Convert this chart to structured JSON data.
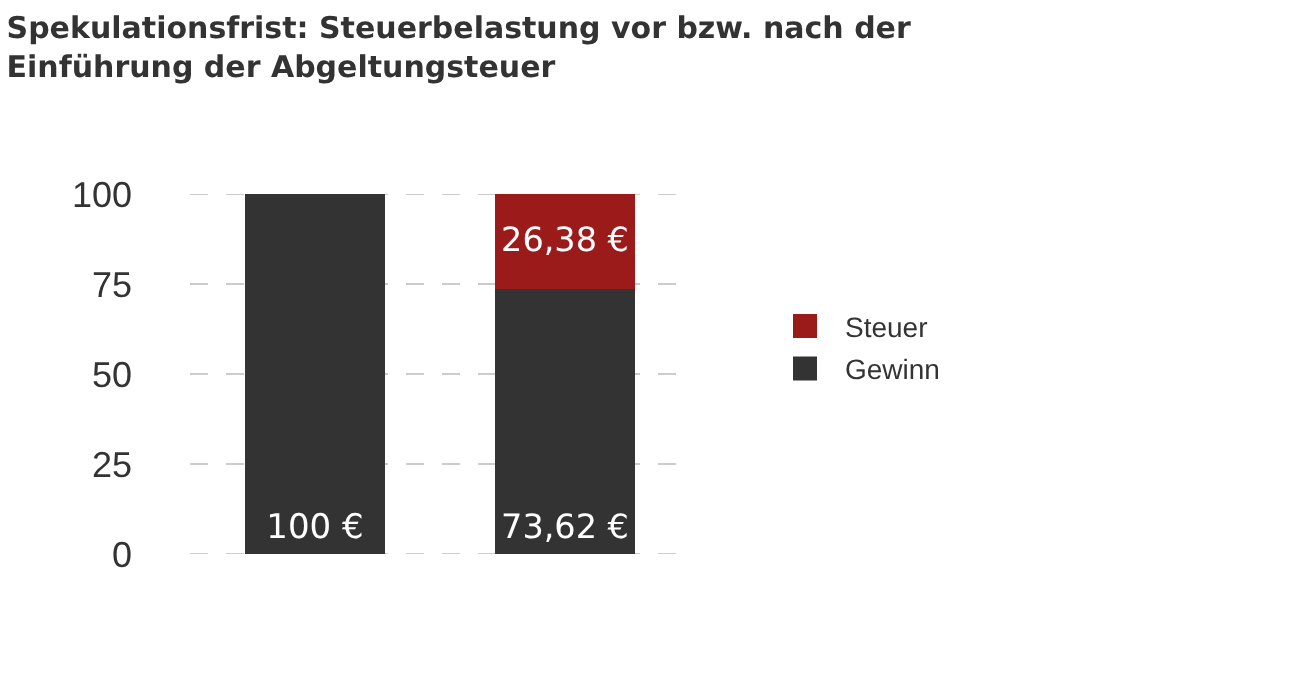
{
  "chart_data": {
    "type": "bar",
    "title": "Spekulationsfrist: Steuerbelastung vor bzw. nach der Einführung der Abgeltungsteuer",
    "categories": [
      null,
      null
    ],
    "stacked": true,
    "series": [
      {
        "name": "Gewinn",
        "color": "#333333",
        "values": [
          100,
          73.62
        ],
        "value_labels": [
          "100 €",
          "73,62 €"
        ]
      },
      {
        "name": "Steuer",
        "color": "#9b1b1b",
        "values": [
          null,
          26.38
        ],
        "value_labels": [
          null,
          "26,38 €"
        ]
      }
    ],
    "ylim": [
      0,
      100
    ],
    "yticks": [
      0,
      25,
      50,
      75,
      100
    ],
    "grid": "y",
    "legend": "right"
  }
}
